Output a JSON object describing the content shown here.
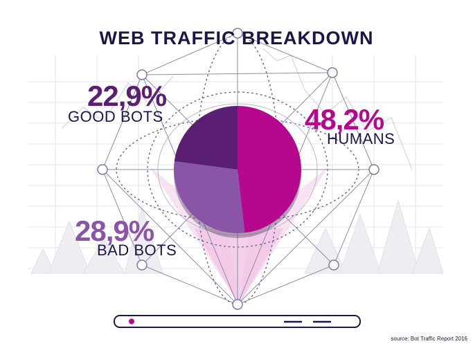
{
  "title": "WEB TRAFFIC BREAKDOWN",
  "source": "source: Bot Traffic Report 2016",
  "colors": {
    "humans": "#b5088e",
    "bad_bots": "#8a55a6",
    "good_bots": "#5a1f73",
    "dark_text": "#1c1547"
  },
  "labels": {
    "good_bots": {
      "value": "22,9%",
      "name": "GOOD BOTS"
    },
    "humans": {
      "value": "48,2%",
      "name": "HUMANS"
    },
    "bad_bots": {
      "value": "28,9%",
      "name": "BAD BOTS"
    }
  },
  "chart_data": {
    "type": "pie",
    "title": "WEB TRAFFIC BREAKDOWN",
    "categories": [
      "HUMANS",
      "BAD BOTS",
      "GOOD BOTS"
    ],
    "values": [
      48.2,
      28.9,
      22.9
    ],
    "colors": [
      "#b5088e",
      "#8a55a6",
      "#5a1f73"
    ]
  }
}
